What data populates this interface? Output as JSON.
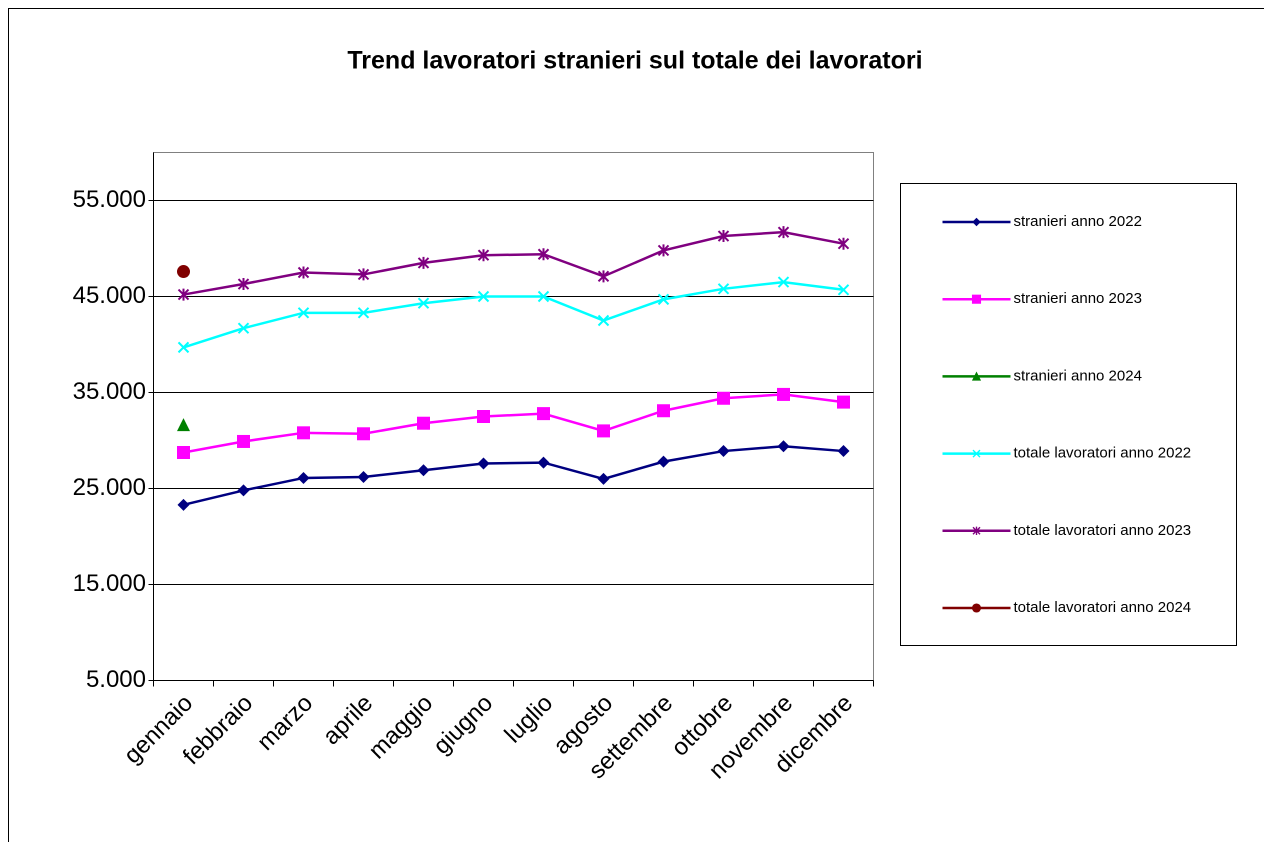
{
  "chart_data": {
    "type": "line",
    "title": "Trend lavoratori stranieri sul totale dei lavoratori",
    "categories": [
      "gennaio",
      "febbraio",
      "marzo",
      "aprile",
      "maggio",
      "giugno",
      "luglio",
      "agosto",
      "settembre",
      "ottobre",
      "novembre",
      "dicembre"
    ],
    "series": [
      {
        "name": "stranieri anno 2022",
        "color": "#000080",
        "marker": "diamond",
        "values": [
          23300,
          24800,
          26100,
          26200,
          26900,
          27600,
          27700,
          26000,
          27800,
          28900,
          29400,
          28900
        ]
      },
      {
        "name": "stranieri anno 2023",
        "color": "#ff00ff",
        "marker": "square",
        "values": [
          28750,
          29900,
          30800,
          30700,
          31800,
          32500,
          32800,
          31000,
          33100,
          34400,
          34800,
          34000
        ]
      },
      {
        "name": "stranieri anno 2024",
        "color": "#008000",
        "marker": "triangle",
        "values": [
          31600,
          null,
          null,
          null,
          null,
          null,
          null,
          null,
          null,
          null,
          null,
          null
        ]
      },
      {
        "name": "totale lavoratori anno 2022",
        "color": "#00ffff",
        "marker": "x",
        "values": [
          39700,
          41700,
          43300,
          43300,
          44300,
          45000,
          45000,
          42500,
          44700,
          45800,
          46500,
          45700
        ]
      },
      {
        "name": "totale lavoratori anno 2023",
        "color": "#800080",
        "marker": "star",
        "values": [
          45200,
          46300,
          47500,
          47300,
          48500,
          49300,
          49400,
          47100,
          49800,
          51300,
          51700,
          50500
        ]
      },
      {
        "name": "totale lavoratori anno 2024",
        "color": "#800000",
        "marker": "circle",
        "values": [
          47600,
          null,
          null,
          null,
          null,
          null,
          null,
          null,
          null,
          null,
          null,
          null
        ]
      }
    ],
    "ylim": [
      5000,
      60000
    ],
    "yticks": [
      {
        "value": 5000,
        "label": "5.000"
      },
      {
        "value": 15000,
        "label": "15.000"
      },
      {
        "value": 25000,
        "label": "25.000"
      },
      {
        "value": 35000,
        "label": "35.000"
      },
      {
        "value": 45000,
        "label": "45.000"
      },
      {
        "value": 55000,
        "label": "55.000"
      }
    ],
    "grid": true,
    "legend": "right"
  }
}
